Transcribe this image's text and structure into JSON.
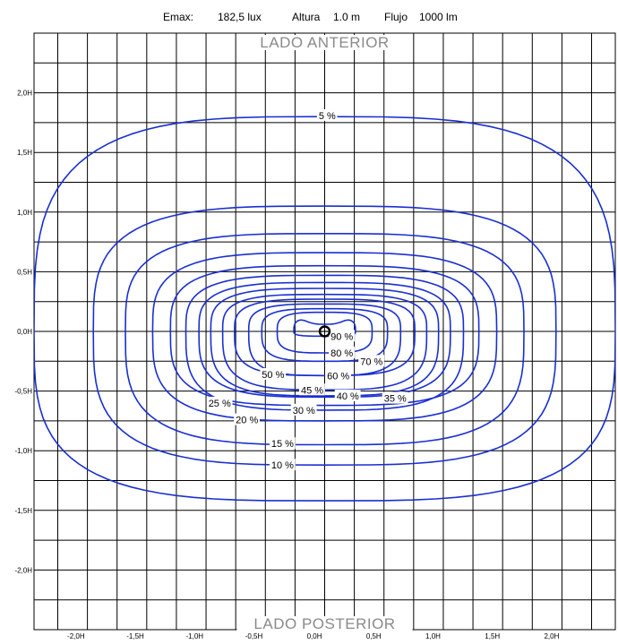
{
  "header": {
    "emax_label": "Emax:",
    "emax_value": "182,5 lux",
    "height_label": "Altura",
    "height_value": "1.0 m",
    "flux_label": "Flujo",
    "flux_value": "1000 lm"
  },
  "side_labels": {
    "top": "LADO ANTERIOR",
    "bottom": "LADO POSTERIOR"
  },
  "colors": {
    "contour": "#1a2fd0",
    "grid": "#000000",
    "side_label": "#8a8a8a"
  },
  "chart_data": {
    "type": "contour",
    "x_unit": "H",
    "y_unit": "H",
    "xlim": [
      -2.45,
      2.45
    ],
    "ylim": [
      -2.5,
      2.5
    ],
    "grid_step": 0.25,
    "grid": true,
    "x_ticks": [
      {
        "value": -2.0,
        "label": "-2,0H"
      },
      {
        "value": -1.5,
        "label": "-1,5H"
      },
      {
        "value": -1.0,
        "label": "-1,0H"
      },
      {
        "value": -0.5,
        "label": "-0,5H"
      },
      {
        "value": 0.0,
        "label": "0,0H"
      },
      {
        "value": 0.5,
        "label": "0,5H"
      },
      {
        "value": 1.0,
        "label": "1,0H"
      },
      {
        "value": 1.5,
        "label": "1,5H"
      },
      {
        "value": 2.0,
        "label": "2,0H"
      }
    ],
    "y_ticks": [
      {
        "value": 2.0,
        "label": "2,0H"
      },
      {
        "value": 1.5,
        "label": "1,5H"
      },
      {
        "value": 1.0,
        "label": "1,0H"
      },
      {
        "value": 0.5,
        "label": "0,5H"
      },
      {
        "value": 0.0,
        "label": "0,0H"
      },
      {
        "value": -0.5,
        "label": "-0,5H"
      },
      {
        "value": -1.0,
        "label": "-1,0H"
      },
      {
        "value": -1.5,
        "label": "-1,5H"
      },
      {
        "value": -2.0,
        "label": "-2,0H"
      }
    ],
    "luminaire_position": [
      0.0,
      0.0
    ],
    "levels": [
      {
        "label": "5 %",
        "a": 2.45,
        "top": 1.8,
        "bottom": -1.42,
        "label_at": [
          -0.05,
          1.81
        ]
      },
      {
        "label": "10 %",
        "a": 1.95,
        "top": 1.05,
        "bottom": -1.12,
        "label_at": [
          -0.45,
          -1.12
        ]
      },
      {
        "label": "15 %",
        "a": 1.68,
        "top": 0.82,
        "bottom": -0.95,
        "label_at": [
          -0.45,
          -0.94
        ]
      },
      {
        "label": "20 %",
        "a": 1.45,
        "top": 0.66,
        "bottom": -0.75,
        "label_at": [
          -0.75,
          -0.74
        ]
      },
      {
        "label": "25 %",
        "a": 1.3,
        "top": 0.55,
        "bottom": -0.62,
        "label_at": [
          -0.98,
          -0.6
        ]
      },
      {
        "label": "30 %",
        "a": 1.17,
        "top": 0.47,
        "bottom": -0.66,
        "label_at": [
          -0.27,
          -0.66
        ]
      },
      {
        "label": "35 %",
        "a": 1.06,
        "top": 0.41,
        "bottom": -0.55,
        "label_at": [
          0.5,
          -0.56
        ]
      },
      {
        "label": "40 %",
        "a": 0.96,
        "top": 0.36,
        "bottom": -0.54,
        "label_at": [
          0.1,
          -0.54
        ]
      },
      {
        "label": "45 %",
        "a": 0.86,
        "top": 0.31,
        "bottom": -0.49,
        "label_at": [
          -0.2,
          -0.49
        ]
      },
      {
        "label": "50 %",
        "a": 0.76,
        "top": 0.27,
        "bottom": -0.37,
        "label_at": [
          -0.53,
          -0.36
        ]
      },
      {
        "label": "60 %",
        "a": 0.64,
        "top": 0.23,
        "bottom": -0.37,
        "label_at": [
          0.02,
          -0.37
        ]
      },
      {
        "label": "70 %",
        "a": 0.53,
        "top": 0.19,
        "bottom": -0.25,
        "label_at": [
          0.3,
          -0.25
        ]
      },
      {
        "label": "80 %",
        "a": 0.4,
        "top": 0.16,
        "bottom": -0.18,
        "label_at": [
          0.05,
          -0.18
        ]
      },
      {
        "label": "90 %",
        "a": 0.26,
        "top": 0.12,
        "bottom": -0.04,
        "label_at": [
          0.05,
          -0.04
        ]
      }
    ]
  }
}
